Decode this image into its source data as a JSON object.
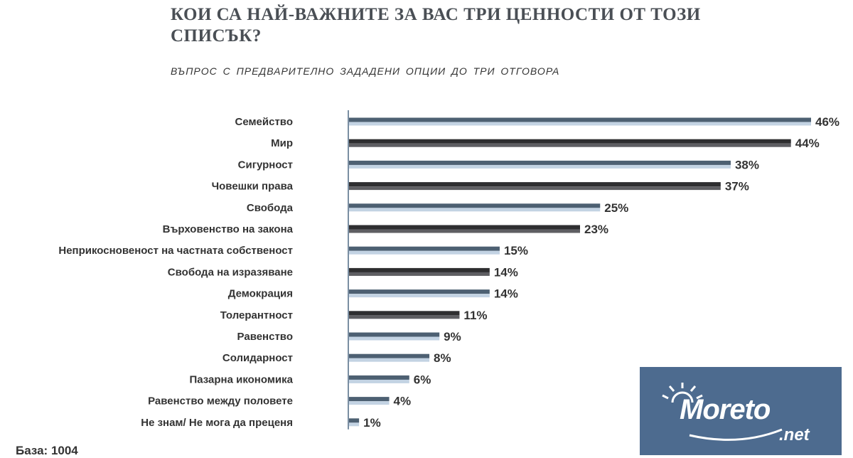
{
  "chart_data": {
    "type": "bar",
    "orientation": "horizontal",
    "title": "КОИ СА НАЙ-ВАЖНИТЕ ЗА ВАС ТРИ ЦЕННОСТИ ОТ ТОЗИ СПИСЪК?",
    "subtitle": "ВЪПРОС С ПРЕДВАРИТЕЛНО ЗАДАДЕНИ ОПЦИИ ДО ТРИ ОТГОВОРА",
    "categories": [
      "Семейство",
      "Мир",
      "Сигурност",
      "Човешки права",
      "Свобода",
      "Върховенство на закона",
      "Неприкосновеност на частната собственост",
      "Свобода на изразяване",
      "Демокрация",
      "Толерантност",
      "Равенство",
      "Солидарност",
      "Пазарна икономика",
      "Равенство между половете",
      "Не знам/ Не мога да преценя"
    ],
    "values": [
      46,
      44,
      38,
      37,
      25,
      23,
      15,
      14,
      14,
      11,
      9,
      8,
      6,
      4,
      1
    ],
    "value_labels": [
      "46%",
      "44%",
      "38%",
      "37%",
      "25%",
      "23%",
      "15%",
      "14%",
      "14%",
      "11%",
      "9%",
      "8%",
      "6%",
      "4%",
      "1%"
    ],
    "bar_styles": [
      "light",
      "dark",
      "light",
      "dark",
      "light",
      "dark",
      "light",
      "dark",
      "light",
      "dark",
      "light",
      "light",
      "light",
      "light",
      "light"
    ],
    "xlim": [
      0,
      46
    ],
    "grid": false,
    "colors": {
      "light_top": "#4d6072",
      "light_bottom": "#c3d3e3",
      "dark_top": "#2e2e30",
      "dark_bottom": "#5e5e62",
      "axis": "#7a8ea2",
      "label": "#333333"
    }
  },
  "footer": {
    "base": "База: 1004"
  },
  "watermark": {
    "brand": "Moreto",
    "suffix": ".net",
    "bg": "#4d6b8f"
  }
}
